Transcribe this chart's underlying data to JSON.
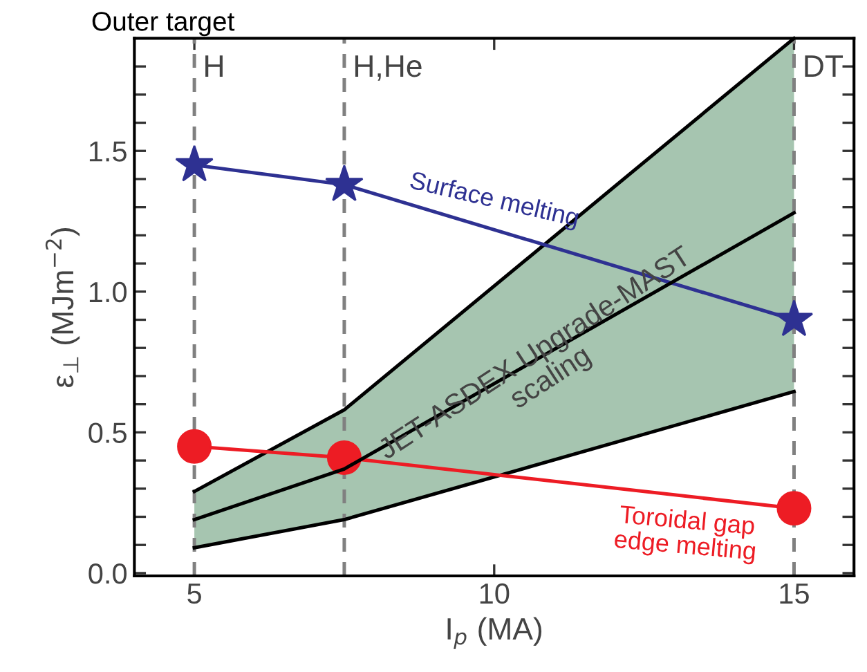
{
  "chart_data": {
    "type": "line",
    "title": "Outer target",
    "xlabel": "I$_{p}$ (MA)",
    "ylabel": "ε$_{⊥}$ (MJm$^{−2}$)",
    "xlim": [
      4,
      16
    ],
    "xticks": [
      5,
      10,
      15
    ],
    "ylim": [
      -0.01,
      1.9
    ],
    "yticks": [
      {
        "value": 0,
        "label": "0.0"
      },
      {
        "value": 0.1,
        "label": null
      },
      {
        "value": 0.2,
        "label": null
      },
      {
        "value": 0.3,
        "label": null
      },
      {
        "value": 0.4,
        "label": null
      },
      0.5,
      {
        "value": 0.6,
        "label": null
      },
      {
        "value": 0.7,
        "label": null
      },
      {
        "value": 0.8,
        "label": null
      },
      {
        "value": 0.9,
        "label": null
      },
      {
        "value": 1.0,
        "label": "1.0"
      },
      {
        "value": 1.1,
        "label": null
      },
      {
        "value": 1.2,
        "label": null
      },
      {
        "value": 1.3,
        "label": null
      },
      {
        "value": 1.4,
        "label": null
      },
      1.5,
      {
        "value": 1.6,
        "label": null
      },
      {
        "value": 1.7,
        "label": null
      },
      {
        "value": 1.8,
        "label": null
      }
    ],
    "x": [
      5,
      7.5,
      15
    ],
    "series": [
      {
        "name": "JET-ASDEX Upgrade-MAST\nscaling",
        "color": "#000000",
        "values": [
          0.19,
          0.37,
          1.28
        ],
        "lower": [
          0.09,
          0.19,
          0.645
        ],
        "upper": [
          0.29,
          0.58,
          1.9
        ],
        "marker": "none"
      },
      {
        "color": "#000000",
        "values": [
          0.09,
          0.19,
          0.645
        ],
        "marker": "none"
      },
      {
        "color": "#000000",
        "values": [
          0.29,
          0.58,
          1.9
        ],
        "marker": "none"
      },
      {
        "name": "Surface melting",
        "color": "#2e3192",
        "values": [
          1.45,
          1.38,
          0.9
        ],
        "marker": "star"
      },
      {
        "name": "Toroidal gap\nedge melting",
        "color": "#ed1c24",
        "values": [
          0.45,
          0.41,
          0.23
        ],
        "marker": "circle"
      }
    ],
    "ref_lines": [
      {
        "axis": "x",
        "value": 5,
        "label": "H",
        "color": "#808080",
        "line_style": "dashed"
      },
      {
        "axis": "x",
        "value": 7.5,
        "label": "H,He",
        "color": "#808080",
        "line_style": "dashed"
      },
      {
        "axis": "x",
        "value": 15,
        "label": "DT",
        "color": "#808080",
        "line_style": "dashed"
      }
    ],
    "grid": false,
    "legend": false
  }
}
